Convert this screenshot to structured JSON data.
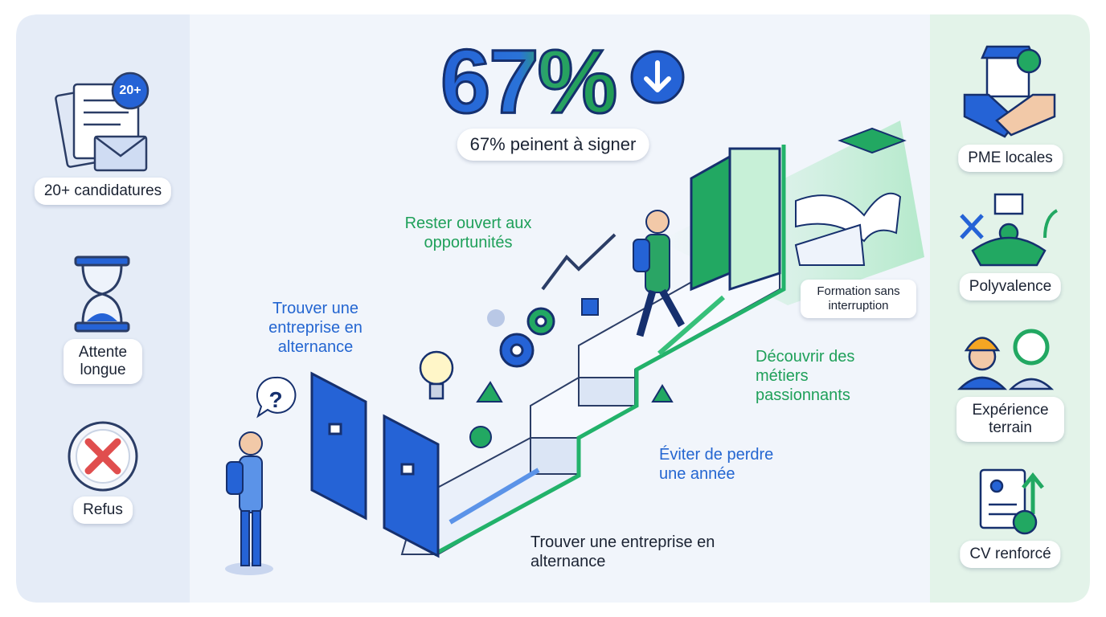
{
  "left_panel": {
    "items": [
      {
        "badge": "20+",
        "label": "20+ candidatures"
      },
      {
        "label": "Attente longue"
      },
      {
        "label": "Refus"
      }
    ]
  },
  "headline": {
    "stat": "67%",
    "caption": "67% peinent à signer"
  },
  "path_labels": {
    "start_question": "?",
    "find_company": "Trouver une entreprise en alternance",
    "stay_open": "Rester ouvert aux opportunités",
    "discover_jobs": "Découvrir des métiers passionnants",
    "avoid_losing_year": "Éviter de perdre une année",
    "find_company_bottom": "Trouver une entreprise en alternance",
    "continuous_training": "Formation sans interruption"
  },
  "right_panel": {
    "items": [
      {
        "label": "PME locales"
      },
      {
        "label": "Polyvalence"
      },
      {
        "label": "Expérience terrain"
      },
      {
        "label": "CV renforcé"
      }
    ]
  }
}
